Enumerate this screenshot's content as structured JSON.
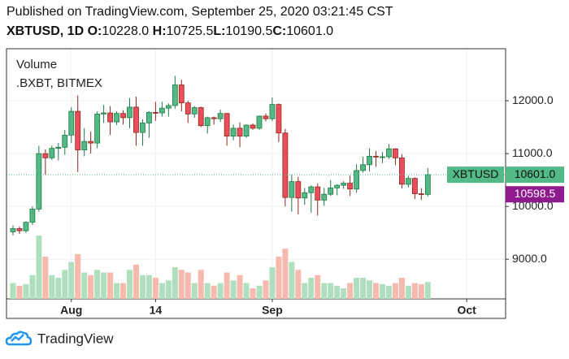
{
  "header": {
    "published": "Published on TradingView.com, September 25, 2020 03:21:45 CST",
    "symbol": "XBTUSD, 1D",
    "ohlc": [
      {
        "label": "O:",
        "value": "10228.0"
      },
      {
        "label": "H:",
        "value": "10725.5"
      },
      {
        "label": "L:",
        "value": "10190.5"
      },
      {
        "label": "C:",
        "value": "10601.0"
      }
    ]
  },
  "footer": {
    "brand": "TradingView"
  },
  "chart_data": {
    "type": "candlestick",
    "legend": [
      "Volume",
      ".BXBT, BITMEX"
    ],
    "up_color": "#53b987",
    "down_color": "#eb4d5c",
    "up_volume_color": "#b0dfbf",
    "down_volume_color": "#f6b9ad",
    "x": [
      "2020-07-23",
      "2020-07-24",
      "2020-07-25",
      "2020-07-26",
      "2020-07-27",
      "2020-07-28",
      "2020-07-29",
      "2020-07-30",
      "2020-07-31",
      "2020-08-01",
      "2020-08-02",
      "2020-08-03",
      "2020-08-04",
      "2020-08-05",
      "2020-08-06",
      "2020-08-07",
      "2020-08-08",
      "2020-08-09",
      "2020-08-10",
      "2020-08-11",
      "2020-08-12",
      "2020-08-13",
      "2020-08-14",
      "2020-08-15",
      "2020-08-16",
      "2020-08-17",
      "2020-08-18",
      "2020-08-19",
      "2020-08-20",
      "2020-08-21",
      "2020-08-22",
      "2020-08-23",
      "2020-08-24",
      "2020-08-25",
      "2020-08-26",
      "2020-08-27",
      "2020-08-28",
      "2020-08-29",
      "2020-08-30",
      "2020-08-31",
      "2020-09-01",
      "2020-09-02",
      "2020-09-03",
      "2020-09-04",
      "2020-09-05",
      "2020-09-06",
      "2020-09-07",
      "2020-09-08",
      "2020-09-09",
      "2020-09-10",
      "2020-09-11",
      "2020-09-12",
      "2020-09-13",
      "2020-09-14",
      "2020-09-15",
      "2020-09-16",
      "2020-09-17",
      "2020-09-18",
      "2020-09-19",
      "2020-09-20",
      "2020-09-21",
      "2020-09-22",
      "2020-09-23",
      "2020-09-24",
      "2020-09-25"
    ],
    "open": [
      9520,
      9580,
      9540,
      9700,
      9950,
      11000,
      10920,
      11100,
      11120,
      11350,
      11800,
      11070,
      11230,
      11200,
      11750,
      11770,
      11600,
      11760,
      11680,
      11880,
      11400,
      11580,
      11780,
      11770,
      11860,
      11910,
      12300,
      11960,
      11750,
      11870,
      11530,
      11680,
      11660,
      11760,
      11330,
      11480,
      11330,
      11540,
      11480,
      11710,
      11660,
      11930,
      11390,
      10170,
      10470,
      10160,
      10260,
      10370,
      10120,
      10230,
      10350,
      10400,
      10440,
      10330,
      10680,
      10790,
      10950,
      10940,
      10940,
      11090,
      10920,
      10420,
      10530,
      10240,
      10228
    ],
    "high": [
      9640,
      9620,
      9720,
      10000,
      11150,
      11080,
      11150,
      11200,
      11450,
      11880,
      12100,
      11480,
      11420,
      11800,
      11920,
      11900,
      11800,
      11820,
      12050,
      12080,
      11650,
      11800,
      11980,
      11980,
      11950,
      12470,
      12400,
      12000,
      11900,
      11890,
      11700,
      11700,
      11830,
      11770,
      11550,
      11590,
      11550,
      11570,
      11720,
      11760,
      12060,
      11950,
      11470,
      10600,
      10560,
      10350,
      10400,
      10440,
      10350,
      10500,
      10420,
      10480,
      10580,
      10800,
      10940,
      11100,
      11050,
      11030,
      11180,
      11100,
      10990,
      10580,
      10550,
      10350,
      10725.5
    ],
    "low": [
      9450,
      9480,
      9500,
      9650,
      9900,
      10600,
      10880,
      10870,
      10980,
      11200,
      10650,
      10950,
      11000,
      11100,
      11580,
      11350,
      11540,
      11550,
      11480,
      11150,
      11150,
      11300,
      11620,
      11700,
      11700,
      11850,
      11800,
      11580,
      11680,
      11500,
      11380,
      11550,
      11600,
      11150,
      11250,
      11120,
      11300,
      11450,
      11450,
      11610,
      11610,
      11220,
      10000,
      9900,
      9850,
      10030,
      9880,
      9830,
      10010,
      10200,
      10210,
      10330,
      10200,
      10260,
      10640,
      10660,
      10750,
      10820,
      10900,
      10780,
      10340,
      10360,
      10140,
      10120,
      10190.5
    ],
    "close": [
      9580,
      9540,
      9700,
      9950,
      11000,
      10920,
      11100,
      11120,
      11350,
      11800,
      11070,
      11230,
      11200,
      11750,
      11770,
      11600,
      11760,
      11680,
      11880,
      11400,
      11580,
      11780,
      11770,
      11860,
      11910,
      12300,
      11960,
      11750,
      11870,
      11530,
      11680,
      11660,
      11760,
      11330,
      11480,
      11330,
      11540,
      11480,
      11710,
      11660,
      11930,
      11390,
      10170,
      10470,
      10160,
      10260,
      10370,
      10120,
      10230,
      10350,
      10400,
      10440,
      10330,
      10680,
      10790,
      10950,
      10940,
      10940,
      11090,
      10920,
      10420,
      10530,
      10240,
      10230,
      10601
    ],
    "volume": [
      30,
      25,
      28,
      45,
      120,
      80,
      45,
      40,
      55,
      70,
      85,
      50,
      45,
      55,
      50,
      50,
      30,
      30,
      55,
      65,
      45,
      45,
      40,
      30,
      35,
      60,
      55,
      50,
      30,
      55,
      30,
      25,
      30,
      50,
      35,
      45,
      30,
      20,
      25,
      35,
      60,
      80,
      95,
      70,
      55,
      30,
      40,
      45,
      30,
      30,
      25,
      20,
      30,
      40,
      40,
      35,
      30,
      28,
      25,
      30,
      40,
      25,
      30,
      28,
      32
    ],
    "xlim": [
      "2020-07-22",
      "2020-10-07"
    ],
    "xticks": [
      {
        "value": "2020-08-01",
        "label": "Aug"
      },
      {
        "value": "2020-08-14",
        "label": "14"
      },
      {
        "value": "2020-09-01",
        "label": "Sep"
      },
      {
        "value": "2020-10-01",
        "label": "Oct"
      }
    ],
    "ylim": [
      8250,
      12985
    ],
    "yticks": [
      {
        "value": 9000,
        "label": "9000.0"
      },
      {
        "value": 10000,
        "label": "10000.0"
      },
      {
        "value": 11000,
        "label": "11000.0"
      },
      {
        "value": 12000,
        "label": "12000.0"
      }
    ],
    "grid": true,
    "price_tags": [
      {
        "name": "XBTUSD",
        "value": 10601,
        "label": "10601.0",
        "color": "#53b987"
      },
      {
        "value": 10598.5,
        "color": "#8e1a8e"
      }
    ]
  }
}
